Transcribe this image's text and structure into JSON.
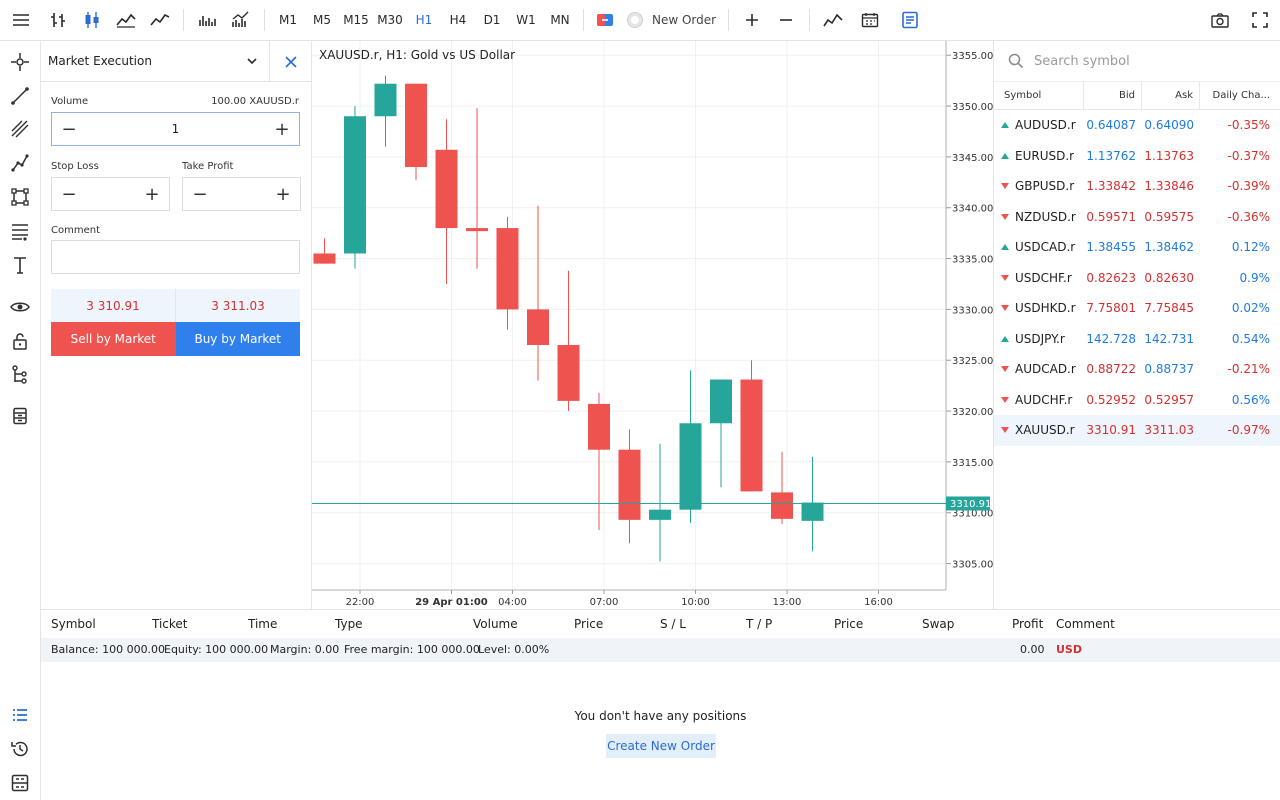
{
  "toolbar": {
    "timeframes": [
      "M1",
      "M5",
      "M15",
      "M30",
      "H1",
      "H4",
      "D1",
      "W1",
      "MN"
    ],
    "active_timeframe": "H1",
    "new_order_label": "New Order"
  },
  "order_panel": {
    "execution_type": "Market Execution",
    "volume_label": "Volume",
    "volume_info": "100.00 XAUUSD.r",
    "volume_value": "1",
    "stop_loss_label": "Stop Loss",
    "take_profit_label": "Take Profit",
    "comment_label": "Comment",
    "sell_price": "3 310.91",
    "buy_price": "3 311.03",
    "sell_label": "Sell by Market",
    "buy_label": "Buy by Market"
  },
  "chart": {
    "title": "XAUUSD.r, H1: Gold vs US Dollar",
    "current_price_label": "3310.91",
    "up_color": "#26a69a",
    "down_color": "#ef5350"
  },
  "chart_data": {
    "type": "candlestick",
    "title": "XAUUSD.r, H1: Gold vs US Dollar",
    "y_ticks": [
      "3355.00",
      "3350.00",
      "3345.00",
      "3340.00",
      "3335.00",
      "3330.00",
      "3325.00",
      "3320.00",
      "3315.00",
      "3310.00",
      "3305.00"
    ],
    "x_ticks": [
      "22:00",
      "29 Apr 01:00",
      "04:00",
      "07:00",
      "10:00",
      "13:00",
      "16:00"
    ],
    "ylim": [
      3302.4,
      3356.4
    ],
    "current_price": 3310.91,
    "candles": [
      {
        "o": 3335.5,
        "h": 3337.0,
        "l": 3334.5,
        "c": 3334.5
      },
      {
        "o": 3335.5,
        "h": 3350.0,
        "l": 3334.0,
        "c": 3349.0
      },
      {
        "o": 3349.0,
        "h": 3353.0,
        "l": 3346.0,
        "c": 3352.2
      },
      {
        "o": 3352.2,
        "h": 3352.2,
        "l": 3342.7,
        "c": 3344.0
      },
      {
        "o": 3345.7,
        "h": 3348.7,
        "l": 3332.5,
        "c": 3338.0
      },
      {
        "o": 3338.0,
        "h": 3349.8,
        "l": 3334.0,
        "c": 3337.7
      },
      {
        "o": 3338.0,
        "h": 3339.1,
        "l": 3328.0,
        "c": 3330.0
      },
      {
        "o": 3330.0,
        "h": 3340.2,
        "l": 3323.0,
        "c": 3326.5
      },
      {
        "o": 3326.5,
        "h": 3333.8,
        "l": 3320.0,
        "c": 3321.0
      },
      {
        "o": 3320.7,
        "h": 3321.8,
        "l": 3308.3,
        "c": 3316.2
      },
      {
        "o": 3316.2,
        "h": 3318.2,
        "l": 3307.0,
        "c": 3309.3
      },
      {
        "o": 3309.3,
        "h": 3316.8,
        "l": 3305.2,
        "c": 3310.3
      },
      {
        "o": 3310.3,
        "h": 3324.0,
        "l": 3309.0,
        "c": 3318.8
      },
      {
        "o": 3318.8,
        "h": 3323.1,
        "l": 3312.5,
        "c": 3323.1
      },
      {
        "o": 3323.1,
        "h": 3325.0,
        "l": 3312.1,
        "c": 3312.1
      },
      {
        "o": 3312.0,
        "h": 3316.0,
        "l": 3308.9,
        "c": 3309.4
      },
      {
        "o": 3309.2,
        "h": 3315.5,
        "l": 3306.2,
        "c": 3311.0
      }
    ]
  },
  "symbols": {
    "search_placeholder": "Search symbol",
    "headers": [
      "Symbol",
      "Bid",
      "Ask",
      "Daily Cha..."
    ],
    "rows": [
      {
        "symbol": "AUDUSD.r",
        "bid": "0.64087",
        "ask": "0.64090",
        "change": "-0.35%",
        "dir": "up",
        "bid_color": "up",
        "ask_color": "up",
        "chg_color": "down"
      },
      {
        "symbol": "EURUSD.r",
        "bid": "1.13762",
        "ask": "1.13763",
        "change": "-0.37%",
        "dir": "up",
        "bid_color": "up",
        "ask_color": "down",
        "chg_color": "down"
      },
      {
        "symbol": "GBPUSD.r",
        "bid": "1.33842",
        "ask": "1.33846",
        "change": "-0.39%",
        "dir": "down",
        "bid_color": "down",
        "ask_color": "down",
        "chg_color": "down"
      },
      {
        "symbol": "NZDUSD.r",
        "bid": "0.59571",
        "ask": "0.59575",
        "change": "-0.36%",
        "dir": "down",
        "bid_color": "down",
        "ask_color": "down",
        "chg_color": "down"
      },
      {
        "symbol": "USDCAD.r",
        "bid": "1.38455",
        "ask": "1.38462",
        "change": "0.12%",
        "dir": "up",
        "bid_color": "up",
        "ask_color": "up",
        "chg_color": "up"
      },
      {
        "symbol": "USDCHF.r",
        "bid": "0.82623",
        "ask": "0.82630",
        "change": "0.9%",
        "dir": "down",
        "bid_color": "down",
        "ask_color": "down",
        "chg_color": "up"
      },
      {
        "symbol": "USDHKD.r",
        "bid": "7.75801",
        "ask": "7.75845",
        "change": "0.02%",
        "dir": "down",
        "bid_color": "down",
        "ask_color": "down",
        "chg_color": "up"
      },
      {
        "symbol": "USDJPY.r",
        "bid": "142.728",
        "ask": "142.731",
        "change": "0.54%",
        "dir": "up",
        "bid_color": "up",
        "ask_color": "up",
        "chg_color": "up"
      },
      {
        "symbol": "AUDCAD.r",
        "bid": "0.88722",
        "ask": "0.88737",
        "change": "-0.21%",
        "dir": "down",
        "bid_color": "down",
        "ask_color": "up",
        "chg_color": "down"
      },
      {
        "symbol": "AUDCHF.r",
        "bid": "0.52952",
        "ask": "0.52957",
        "change": "0.56%",
        "dir": "down",
        "bid_color": "down",
        "ask_color": "down",
        "chg_color": "up"
      },
      {
        "symbol": "XAUUSD.r",
        "bid": "3310.91",
        "ask": "3311.03",
        "change": "-0.97%",
        "dir": "down",
        "bid_color": "down",
        "ask_color": "down",
        "chg_color": "down",
        "selected": true
      }
    ]
  },
  "positions": {
    "headers": [
      "Symbol",
      "Ticket",
      "Time",
      "Type",
      "Volume",
      "Price",
      "S / L",
      "T / P",
      "Price",
      "Swap",
      "Profit",
      "Comment"
    ],
    "balance": "Balance: 100 000.00",
    "equity": "Equity: 100 000.00",
    "margin": "Margin: 0.00",
    "free_margin": "Free margin: 100 000.00",
    "level": "Level: 0.00%",
    "profit_total": "0.00",
    "currency": "USD",
    "empty_message": "You don't have any positions",
    "create_label": "Create New Order"
  }
}
